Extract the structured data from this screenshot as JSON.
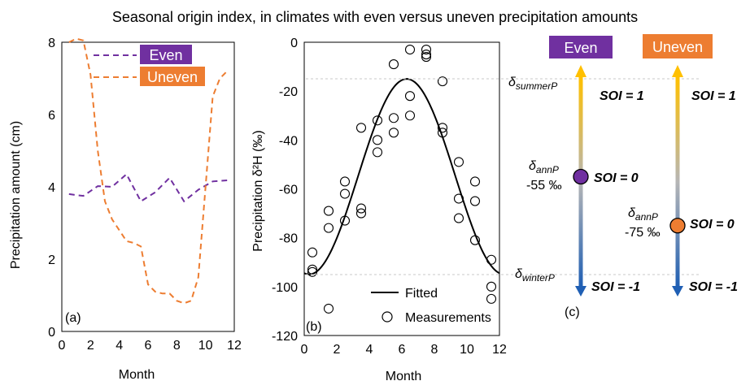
{
  "title": "Seasonal origin index, in climates with even versus uneven precipitation amounts",
  "colors": {
    "even": "#7030a0",
    "uneven": "#ed7d31",
    "fitted": "#000000",
    "arrow_top": "#ffc000",
    "arrow_bottom": "#1f5fb4",
    "refline": "#c8c8c8"
  },
  "chart_data": [
    {
      "type": "line",
      "panel_label": "(a)",
      "xlabel": "Month",
      "ylabel": "Precipitation amount (cm)",
      "xlim": [
        0,
        12
      ],
      "ylim": [
        0,
        8
      ],
      "xticks": [
        0,
        2,
        4,
        6,
        8,
        10,
        12
      ],
      "yticks": [
        0,
        2,
        4,
        6,
        8
      ],
      "grid": false,
      "legend": "top-right",
      "series": [
        {
          "name": "Even",
          "style": "dashed",
          "x": [
            0.5,
            1,
            1.5,
            2.5,
            3.5,
            4.5,
            5.5,
            6.5,
            7.5,
            8.5,
            9.5,
            10.5,
            11.5
          ],
          "y": [
            3.8,
            3.77,
            3.75,
            4.02,
            4.0,
            4.35,
            3.6,
            3.85,
            4.25,
            3.6,
            3.92,
            4.15,
            4.18
          ]
        },
        {
          "name": "Uneven",
          "style": "dashed",
          "x": [
            0.5,
            1,
            1.5,
            2,
            2.5,
            3,
            3.5,
            4,
            4.5,
            5,
            5.5,
            6,
            6.5,
            7,
            7.5,
            8,
            8.5,
            9,
            9.5,
            10,
            10.5,
            11,
            11.5
          ],
          "y": [
            8.0,
            8.1,
            8.05,
            7.1,
            5.0,
            3.6,
            3.1,
            2.8,
            2.5,
            2.45,
            2.35,
            1.3,
            1.1,
            1.05,
            1.05,
            0.85,
            0.78,
            0.85,
            1.5,
            4.0,
            6.5,
            7.0,
            7.2
          ]
        }
      ]
    },
    {
      "type": "scatter",
      "panel_label": "(b)",
      "xlabel": "Month",
      "ylabel": "Precipitation δ²H (‰)",
      "xlim": [
        0,
        12
      ],
      "ylim": [
        -120,
        0
      ],
      "xticks": [
        0,
        2,
        4,
        6,
        8,
        10,
        12
      ],
      "yticks": [
        0,
        -20,
        -40,
        -60,
        -80,
        -100,
        -120
      ],
      "grid": false,
      "legend": "bottom-right",
      "fitted": {
        "name": "Fitted",
        "mean": -55,
        "amplitude": 40,
        "peak_month": 6.3
      },
      "measurements": {
        "name": "Measurements",
        "x": [
          0.5,
          0.5,
          0.5,
          1.5,
          1.5,
          1.5,
          2.5,
          2.5,
          2.5,
          3.5,
          3.5,
          3.5,
          4.5,
          4.5,
          4.5,
          5.5,
          5.5,
          5.5,
          6.5,
          6.5,
          6.5,
          7.5,
          7.5,
          7.5,
          8.5,
          8.5,
          8.5,
          9.5,
          9.5,
          9.5,
          10.5,
          10.5,
          10.5,
          11.5,
          11.5,
          11.5
        ],
        "y": [
          -86,
          -93,
          -94,
          -69,
          -76,
          -109,
          -57,
          -62,
          -73,
          -35,
          -68,
          -70,
          -32,
          -40,
          -45,
          -9,
          -31,
          -37,
          -3,
          -22,
          -30,
          -3,
          -5,
          -6,
          -16,
          -35,
          -37,
          -49,
          -64,
          -72,
          -57,
          -65,
          -81,
          -89,
          -100,
          -105
        ]
      }
    }
  ],
  "diagram": {
    "panel_label": "(c)",
    "summer_label": "δ",
    "summer_sub": "summerP",
    "winter_label": "δ",
    "winter_sub": "winterP",
    "soi_top": "SOI = 1",
    "soi_mid": "SOI = 0",
    "soi_bottom": "SOI = -1",
    "annp_label": "δ",
    "annp_sub": "annP",
    "even": {
      "badge": "Even",
      "annp_value": "-55 ‰",
      "annp_fraction": 0.5
    },
    "uneven": {
      "badge": "Uneven",
      "annp_value": "-75 ‰",
      "annp_fraction": 0.75
    }
  }
}
